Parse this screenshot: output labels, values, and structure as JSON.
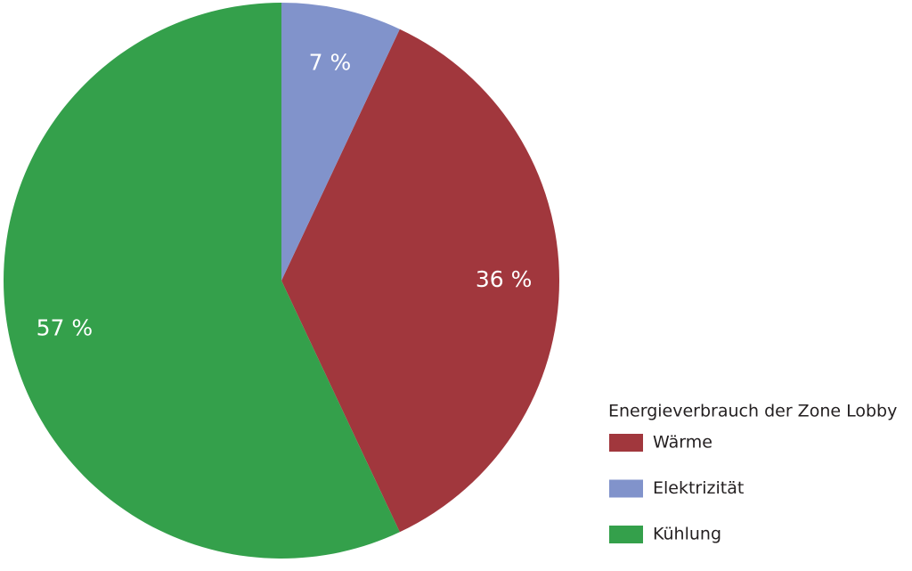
{
  "chart_data": {
    "type": "pie",
    "legend_title": "Energieverbrauch der Zone Lobby",
    "categories": [
      "Wärme",
      "Elektrizität",
      "Kühlung"
    ],
    "values": [
      36,
      7,
      57
    ],
    "value_labels": [
      "36 %",
      "7 %",
      "57 %"
    ],
    "colors": [
      "#a1373d",
      "#8193cb",
      "#34a04b"
    ],
    "legend": "lower right"
  }
}
